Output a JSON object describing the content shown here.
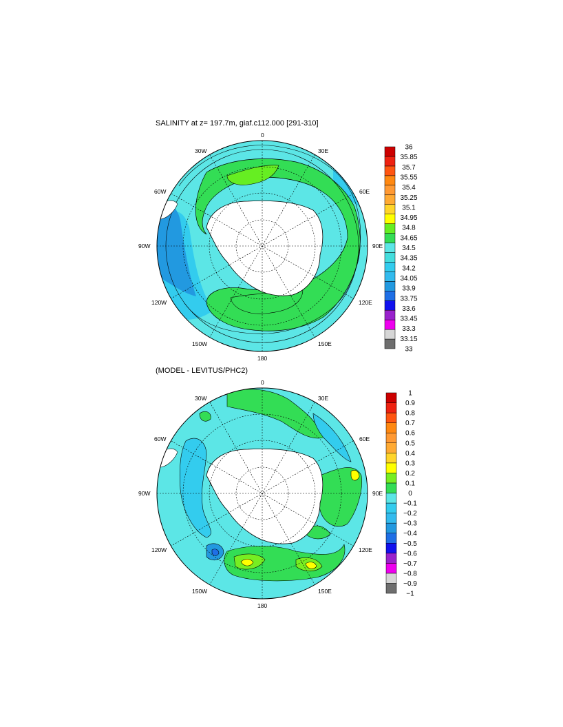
{
  "colors": {
    "ocean_light": "#5ce6e6",
    "ocean_mid": "#33ccee",
    "ocean_dark": "#2299e0",
    "ocean_deep": "#1f6fe6",
    "green": "#33dd55",
    "lime": "#77ee22",
    "yellow": "#ffff00",
    "land": "#ffffff",
    "contour": "#000000"
  },
  "panels": [
    {
      "title": "SALINITY at z= 197.7m, giaf.c112.000 [291-310]",
      "labels": {
        "lat0": "0",
        "e30": "30E",
        "e60": "60E",
        "e90": "90E",
        "e120": "120E",
        "e150": "150E",
        "lon180": "180",
        "w150": "150W",
        "w120": "120W",
        "w90": "90W",
        "w60": "60W",
        "w30": "30W"
      },
      "colorbar": {
        "colors": [
          "#6e6e6e",
          "#d6d6d6",
          "#ee00ee",
          "#9922cc",
          "#1111ee",
          "#1f6fe6",
          "#2299e0",
          "#33bbee",
          "#33ccee",
          "#44dddd",
          "#5ce6e6",
          "#33dd55",
          "#66ee22",
          "#ffff00",
          "#ffd52a",
          "#ffaa33",
          "#ff9933",
          "#ff8811",
          "#ff5511",
          "#ee2211",
          "#cc0000"
        ],
        "ticks": [
          "33",
          "33.15",
          "33.3",
          "33.45",
          "33.6",
          "33.75",
          "33.9",
          "34.05",
          "34.2",
          "34.35",
          "34.5",
          "34.65",
          "34.8",
          "34.95",
          "35.1",
          "35.25",
          "35.4",
          "35.55",
          "35.7",
          "35.85",
          "36"
        ]
      }
    },
    {
      "title": "(MODEL - LEVITUS/PHC2)",
      "labels": {
        "lat0": "0",
        "e30": "30E",
        "e60": "60E",
        "e90": "90E",
        "e120": "120E",
        "e150": "150E",
        "lon180": "180",
        "w150": "150W",
        "w120": "120W",
        "w90": "90W",
        "w60": "60W",
        "w30": "30W"
      },
      "colorbar": {
        "colors": [
          "#6e6e6e",
          "#d6d6d6",
          "#ee00ee",
          "#9922cc",
          "#1111ee",
          "#1f6fe6",
          "#2299e0",
          "#33bbee",
          "#33ccee",
          "#5ce6e6",
          "#33dd55",
          "#77ee22",
          "#ffff00",
          "#ffd52a",
          "#ffaa33",
          "#ff9933",
          "#ff8811",
          "#ff5511",
          "#ee2211",
          "#cc0000"
        ],
        "ticks": [
          "−1",
          "−0.9",
          "−0.8",
          "−0.7",
          "−0.6",
          "−0.5",
          "−0.4",
          "−0.3",
          "−0.2",
          "−0.1",
          "0",
          "0.1",
          "0.2",
          "0.3",
          "0.4",
          "0.5",
          "0.6",
          "0.7",
          "0.8",
          "0.9",
          "1"
        ]
      }
    }
  ]
}
